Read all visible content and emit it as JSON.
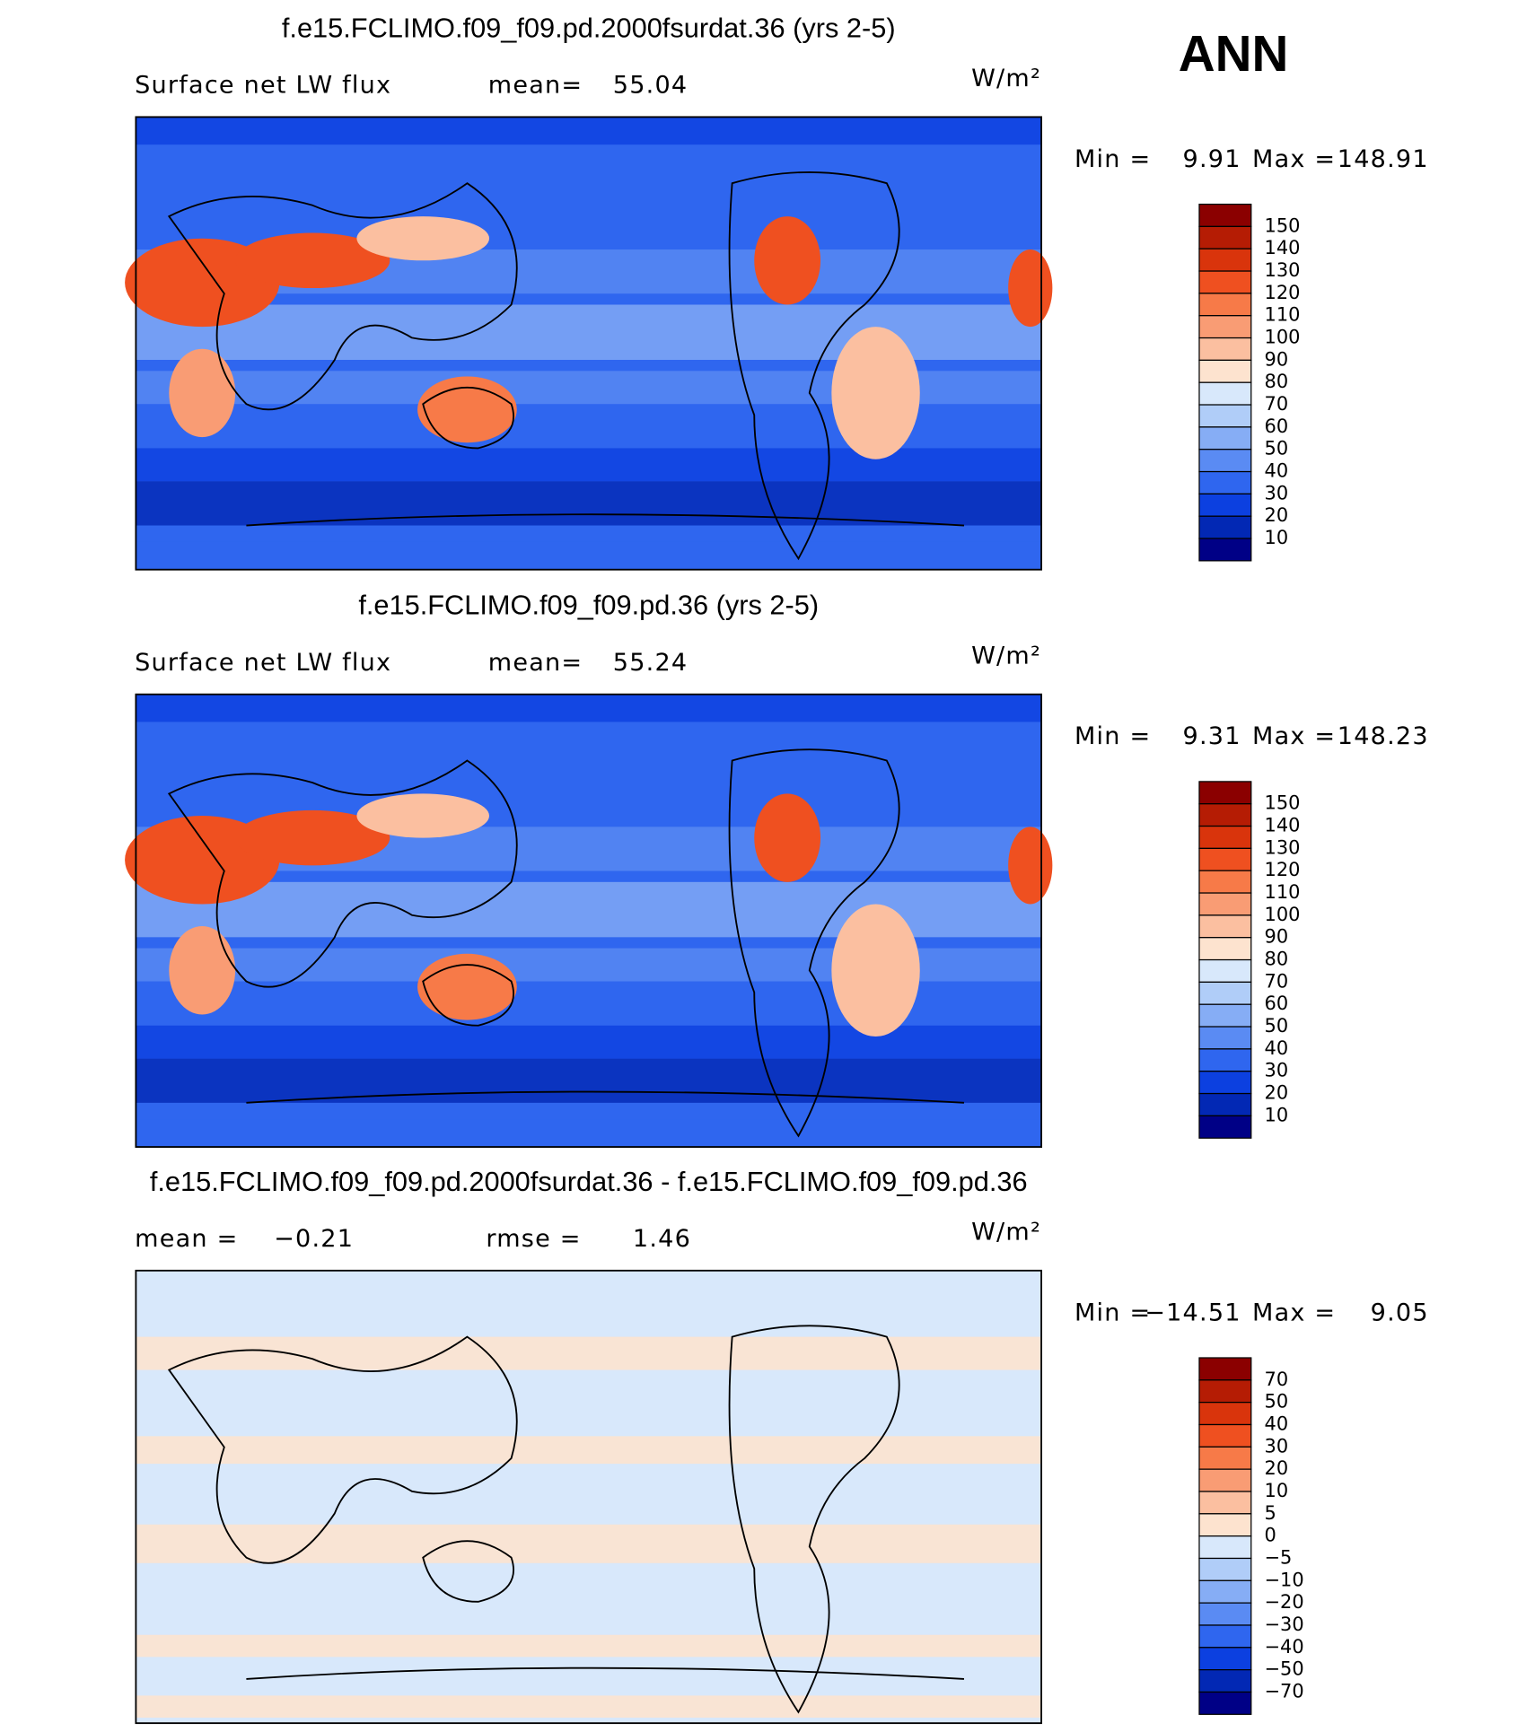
{
  "header": {
    "season": "ANN"
  },
  "panels": [
    {
      "title": "f.e15.FCLIMO.f09_f09.pd.2000fsurdat.36 (yrs 2-5)",
      "variable": "Surface net LW flux",
      "stats": [
        {
          "label": "mean=",
          "value": 55.04
        }
      ],
      "units": "W/m²",
      "min_label": "Min =",
      "min": 9.91,
      "max_label": "Max =",
      "max": 148.91,
      "levels": [
        150,
        140,
        130,
        120,
        110,
        100,
        90,
        80,
        70,
        60,
        50,
        40,
        30,
        20,
        10
      ],
      "colors": [
        "#8b0000",
        "#b51c04",
        "#d9340c",
        "#ef5020",
        "#f77a48",
        "#f99c74",
        "#fbbfa0",
        "#fde3cf",
        "#d8e8fb",
        "#b0cdf8",
        "#86adf5",
        "#5a8bf3",
        "#2f66ef",
        "#0c40e0",
        "#0228b4",
        "#000086"
      ]
    },
    {
      "title": "f.e15.FCLIMO.f09_f09.pd.36 (yrs 2-5)",
      "variable": "Surface net LW flux",
      "stats": [
        {
          "label": "mean=",
          "value": 55.24
        }
      ],
      "units": "W/m²",
      "min_label": "Min =",
      "min": 9.31,
      "max_label": "Max =",
      "max": 148.23,
      "levels": [
        150,
        140,
        130,
        120,
        110,
        100,
        90,
        80,
        70,
        60,
        50,
        40,
        30,
        20,
        10
      ],
      "colors": [
        "#8b0000",
        "#b51c04",
        "#d9340c",
        "#ef5020",
        "#f77a48",
        "#f99c74",
        "#fbbfa0",
        "#fde3cf",
        "#d8e8fb",
        "#b0cdf8",
        "#86adf5",
        "#5a8bf3",
        "#2f66ef",
        "#0c40e0",
        "#0228b4",
        "#000086"
      ]
    },
    {
      "title": "f.e15.FCLIMO.f09_f09.pd.2000fsurdat.36 - f.e15.FCLIMO.f09_f09.pd.36",
      "stats": [
        {
          "label": "mean =",
          "value": {
            "value": -0.21,
            "label": "−0.21"
          }
        },
        {
          "label": "rmse =",
          "value": 1.46
        }
      ],
      "units": "W/m²",
      "min_label": "Min =",
      "min": {
        "value": -14.51,
        "label": "−14.51"
      },
      "max_label": "Max =",
      "max": 9.05,
      "levels": [
        70,
        50,
        40,
        30,
        20,
        10,
        5,
        0,
        {
          "value": -5,
          "label": "−5"
        },
        {
          "value": -10,
          "label": "−10"
        },
        {
          "value": -20,
          "label": "−20"
        },
        {
          "value": -30,
          "label": "−30"
        },
        {
          "value": -40,
          "label": "−40"
        },
        {
          "value": -50,
          "label": "−50"
        },
        {
          "value": -70,
          "label": "−70"
        }
      ],
      "colors": [
        "#8b0000",
        "#b51c04",
        "#d9340c",
        "#ef5020",
        "#f77a48",
        "#f99c74",
        "#fbbfa0",
        "#fde3cf",
        "#d8e8fb",
        "#b0cdf8",
        "#86adf5",
        "#5a8bf3",
        "#2f66ef",
        "#0c40e0",
        "#0228b4",
        "#000086"
      ]
    }
  ]
}
